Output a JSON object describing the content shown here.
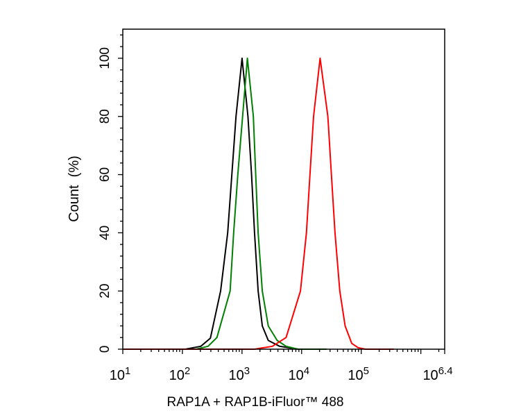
{
  "chart_data": {
    "type": "line",
    "title": "",
    "xlabel": "RAP1A + RAP1B-iFluor™ 488",
    "ylabel": "Count  (%)",
    "x_scale": "log",
    "xlim": [
      10,
      2511886
    ],
    "ylim": [
      0,
      110
    ],
    "x_tick_labels": [
      {
        "base": "10",
        "exp": "1"
      },
      {
        "base": "10",
        "exp": "2"
      },
      {
        "base": "10",
        "exp": "3"
      },
      {
        "base": "10",
        "exp": "4"
      },
      {
        "base": "10",
        "exp": "5"
      },
      {
        "base": "10",
        "exp": "6.4"
      }
    ],
    "x_ticks": [
      10,
      100,
      1000,
      10000,
      100000,
      2511886
    ],
    "y_ticks": [
      0,
      20,
      40,
      60,
      80,
      100
    ],
    "grid": false,
    "legend": "none",
    "series": [
      {
        "color": "#000000",
        "x": [
          112,
          204,
          295,
          437,
          575,
          676,
          794,
          1000,
          1259,
          1445,
          1622,
          1862,
          2188,
          2754,
          4266,
          8710
        ],
        "y": [
          0,
          1,
          3.8,
          20,
          40,
          60,
          80,
          100,
          80,
          60,
          40,
          20,
          8,
          3,
          1,
          0
        ]
      },
      {
        "color": "#008000",
        "x": [
          170,
          269,
          380,
          631,
          724,
          851,
          1023,
          1230,
          1549,
          1698,
          1862,
          2188,
          2754,
          3890,
          5495,
          8710
        ],
        "y": [
          0,
          1,
          4,
          20,
          40,
          60,
          80,
          100,
          80,
          60,
          40,
          20,
          8,
          3,
          1,
          0
        ]
      },
      {
        "color": "#ff0000",
        "x": [
          1622,
          3236,
          5495,
          9550,
          12023,
          13804,
          15849,
          20417,
          27542,
          31623,
          36308,
          43652,
          53703,
          69183,
          89125,
          117490
        ],
        "y": [
          0,
          1,
          4,
          20,
          40,
          60,
          80,
          100,
          80,
          60,
          40,
          20,
          8,
          2,
          0.5,
          0
        ]
      }
    ]
  }
}
